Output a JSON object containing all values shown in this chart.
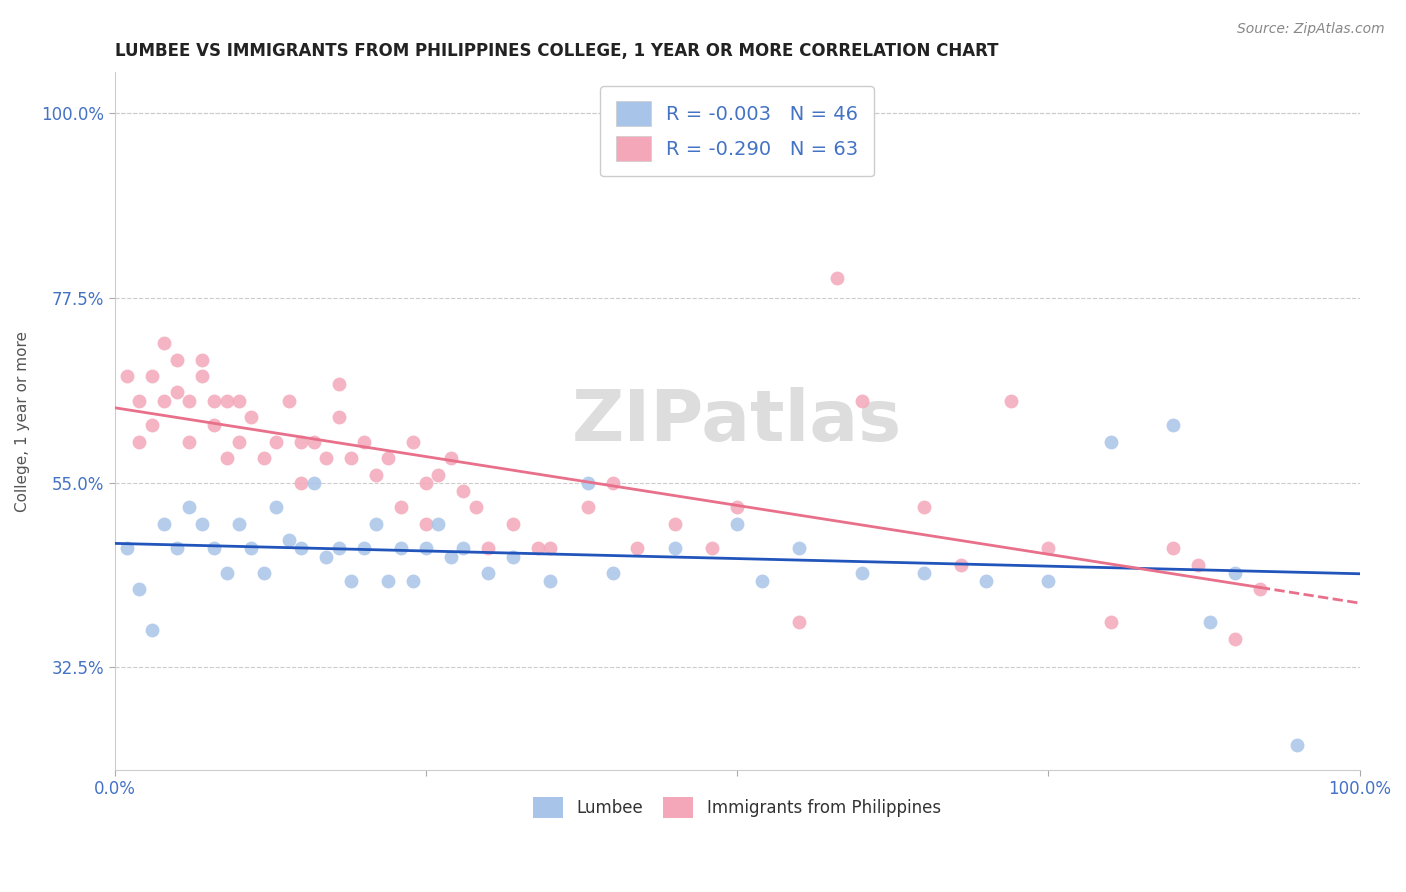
{
  "title": "LUMBEE VS IMMIGRANTS FROM PHILIPPINES COLLEGE, 1 YEAR OR MORE CORRELATION CHART",
  "source_text": "Source: ZipAtlas.com",
  "ylabel": "College, 1 year or more",
  "xlim": [
    0.0,
    1.0
  ],
  "ylim": [
    0.2,
    1.05
  ],
  "yticks": [
    0.325,
    0.55,
    0.775,
    1.0
  ],
  "ytick_labels": [
    "32.5%",
    "55.0%",
    "77.5%",
    "100.0%"
  ],
  "xticks": [
    0.0,
    0.25,
    0.5,
    0.75,
    1.0
  ],
  "xtick_labels": [
    "0.0%",
    "",
    "",
    "",
    "100.0%"
  ],
  "lumbee_R": -0.003,
  "lumbee_N": 46,
  "philippines_R": -0.29,
  "philippines_N": 63,
  "lumbee_color": "#a8c4e8",
  "philippines_color": "#f4a7b9",
  "lumbee_line_color": "#2255bb",
  "philippines_line_color": "#e8708a",
  "grid_color": "#cccccc",
  "lumbee_x": [
    0.01,
    0.02,
    0.03,
    0.04,
    0.05,
    0.06,
    0.07,
    0.08,
    0.09,
    0.1,
    0.11,
    0.12,
    0.13,
    0.14,
    0.15,
    0.16,
    0.17,
    0.18,
    0.19,
    0.2,
    0.21,
    0.22,
    0.23,
    0.24,
    0.25,
    0.26,
    0.27,
    0.28,
    0.3,
    0.32,
    0.35,
    0.38,
    0.4,
    0.45,
    0.5,
    0.52,
    0.55,
    0.6,
    0.65,
    0.7,
    0.75,
    0.8,
    0.85,
    0.88,
    0.9,
    0.95
  ],
  "lumbee_y": [
    0.47,
    0.42,
    0.37,
    0.5,
    0.47,
    0.52,
    0.5,
    0.47,
    0.44,
    0.5,
    0.47,
    0.44,
    0.52,
    0.48,
    0.47,
    0.55,
    0.46,
    0.47,
    0.43,
    0.47,
    0.5,
    0.43,
    0.47,
    0.43,
    0.47,
    0.5,
    0.46,
    0.47,
    0.44,
    0.46,
    0.43,
    0.55,
    0.44,
    0.47,
    0.5,
    0.43,
    0.47,
    0.44,
    0.44,
    0.43,
    0.43,
    0.6,
    0.62,
    0.38,
    0.44,
    0.23
  ],
  "philippines_x": [
    0.01,
    0.02,
    0.02,
    0.03,
    0.03,
    0.04,
    0.04,
    0.05,
    0.05,
    0.06,
    0.06,
    0.07,
    0.07,
    0.08,
    0.08,
    0.09,
    0.09,
    0.1,
    0.1,
    0.11,
    0.12,
    0.13,
    0.14,
    0.15,
    0.15,
    0.16,
    0.17,
    0.18,
    0.18,
    0.19,
    0.2,
    0.21,
    0.22,
    0.23,
    0.24,
    0.25,
    0.25,
    0.26,
    0.27,
    0.28,
    0.29,
    0.3,
    0.32,
    0.34,
    0.35,
    0.38,
    0.4,
    0.42,
    0.45,
    0.48,
    0.5,
    0.55,
    0.58,
    0.6,
    0.65,
    0.68,
    0.72,
    0.75,
    0.8,
    0.85,
    0.87,
    0.9,
    0.92
  ],
  "philippines_y": [
    0.68,
    0.65,
    0.6,
    0.68,
    0.62,
    0.65,
    0.72,
    0.66,
    0.7,
    0.65,
    0.6,
    0.68,
    0.7,
    0.62,
    0.65,
    0.58,
    0.65,
    0.6,
    0.65,
    0.63,
    0.58,
    0.6,
    0.65,
    0.6,
    0.55,
    0.6,
    0.58,
    0.63,
    0.67,
    0.58,
    0.6,
    0.56,
    0.58,
    0.52,
    0.6,
    0.5,
    0.55,
    0.56,
    0.58,
    0.54,
    0.52,
    0.47,
    0.5,
    0.47,
    0.47,
    0.52,
    0.55,
    0.47,
    0.5,
    0.47,
    0.52,
    0.38,
    0.8,
    0.65,
    0.52,
    0.45,
    0.65,
    0.47,
    0.38,
    0.47,
    0.45,
    0.36,
    0.42
  ]
}
